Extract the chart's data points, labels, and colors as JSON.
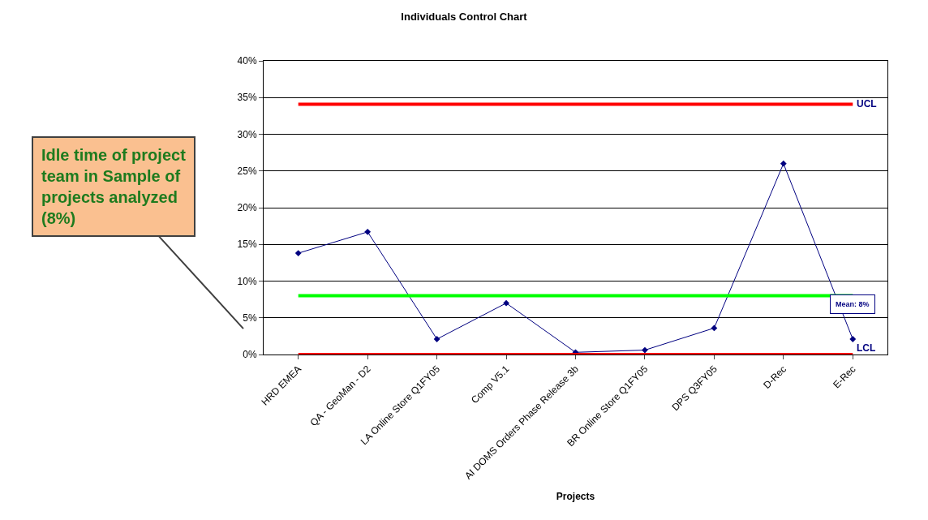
{
  "chart_data": {
    "type": "line",
    "title": "Individuals Control Chart",
    "xlabel": "Projects",
    "categories": [
      "HRD EMEA",
      "QA - GeoMan - D2",
      "LA Online Store Q1FY05",
      "Comp V5.1",
      "AI DOMS Orders Phase Release 3b",
      "BR Online Store Q1FY05",
      "DPS Q3FY05",
      "D-Rec",
      "E-Rec"
    ],
    "series": [
      {
        "color": "#000080",
        "values": [
          13.8,
          16.7,
          2.1,
          7.0,
          0.3,
          0.6,
          3.6,
          26.0,
          2.1
        ]
      }
    ],
    "marker": "diamond",
    "grid": "y",
    "ylim": [
      0,
      40
    ],
    "yticks": [
      {
        "value": 0,
        "label": "0%"
      },
      {
        "value": 5,
        "label": "5%"
      },
      {
        "value": 10,
        "label": "10%"
      },
      {
        "value": 15,
        "label": "15%"
      },
      {
        "value": 20,
        "label": "20%"
      },
      {
        "value": 25,
        "label": "25%"
      },
      {
        "value": 30,
        "label": "30%"
      },
      {
        "value": 35,
        "label": "35%"
      },
      {
        "value": 40,
        "label": "40%"
      }
    ],
    "ref_lines": [
      {
        "axis": "y",
        "value": 34.1,
        "label": "UCL",
        "color": "#ff0000"
      },
      {
        "axis": "y",
        "value": 8,
        "label": "Mean: 8%",
        "color": "#00ff00"
      },
      {
        "axis": "y",
        "value": 0,
        "label": "LCL",
        "color": "#ff0000"
      }
    ],
    "annotations": [
      "Idle time of project team in Sample of projects analyzed (8%)"
    ]
  }
}
